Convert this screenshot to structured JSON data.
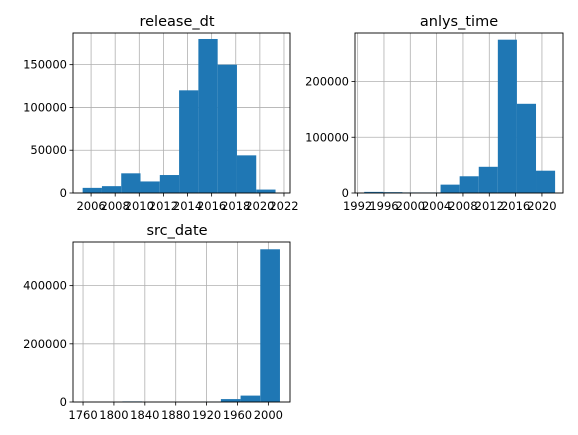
{
  "colors": {
    "bar": "#1f77b4",
    "grid": "#b0b0b0",
    "axis": "#000000"
  },
  "chart_data": [
    {
      "type": "bar",
      "title": "release_dt",
      "xlabel": "",
      "ylabel": "",
      "grid": true,
      "xlim": [
        2004.5,
        2022.5
      ],
      "ylim": [
        0,
        187000
      ],
      "xticks": [
        2006,
        2008,
        2010,
        2012,
        2014,
        2016,
        2018,
        2020,
        2022
      ],
      "xtick_labels": [
        "2006",
        "2008",
        "2010",
        "2012",
        "2014",
        "2016",
        "2018",
        "2020",
        "2022"
      ],
      "yticks": [
        0,
        50000,
        100000,
        150000
      ],
      "ytick_labels": [
        "0",
        "50000",
        "100000",
        "150000"
      ],
      "bin_edges": [
        2005.3,
        2006.9,
        2008.5,
        2010.1,
        2011.7,
        2013.3,
        2014.9,
        2016.5,
        2018.1,
        2019.7,
        2021.3
      ],
      "values": [
        6000,
        8000,
        23000,
        13500,
        21000,
        120000,
        180000,
        150000,
        44000,
        4000
      ]
    },
    {
      "type": "bar",
      "title": "anlys_time",
      "xlabel": "",
      "ylabel": "",
      "grid": true,
      "xlim": [
        1991.6,
        2023.2
      ],
      "ylim": [
        0,
        287000
      ],
      "xticks": [
        1992,
        1996,
        2000,
        2004,
        2008,
        2012,
        2016,
        2020
      ],
      "xtick_labels": [
        "1992",
        "1996",
        "2000",
        "2004",
        "2008",
        "2012",
        "2016",
        "2020"
      ],
      "yticks": [
        0,
        100000,
        200000
      ],
      "ytick_labels": [
        "0",
        "100000",
        "200000"
      ],
      "bin_edges": [
        1993.0,
        1995.9,
        1998.8,
        2001.7,
        2004.6,
        2007.5,
        2010.4,
        2013.3,
        2016.2,
        2019.1,
        2022.0
      ],
      "values": [
        2000,
        1500,
        1000,
        1000,
        15000,
        30000,
        47000,
        275000,
        160000,
        40000
      ]
    },
    {
      "type": "bar",
      "title": "src_date",
      "xlabel": "",
      "ylabel": "",
      "grid": true,
      "xlim": [
        1747,
        2028
      ],
      "ylim": [
        0,
        550000
      ],
      "xticks": [
        1760,
        1800,
        1840,
        1880,
        1920,
        1960,
        2000
      ],
      "xtick_labels": [
        "1760",
        "1800",
        "1840",
        "1880",
        "1920",
        "1960",
        "2000"
      ],
      "yticks": [
        0,
        200000,
        400000
      ],
      "ytick_labels": [
        "0",
        "200000",
        "400000"
      ],
      "bin_edges": [
        1760,
        1785.5,
        1811,
        1836.5,
        1862,
        1887.5,
        1913,
        1938.5,
        1964,
        1989.5,
        2015
      ],
      "values": [
        0,
        0,
        2000,
        0,
        0,
        0,
        1000,
        10000,
        22000,
        525000
      ]
    }
  ]
}
